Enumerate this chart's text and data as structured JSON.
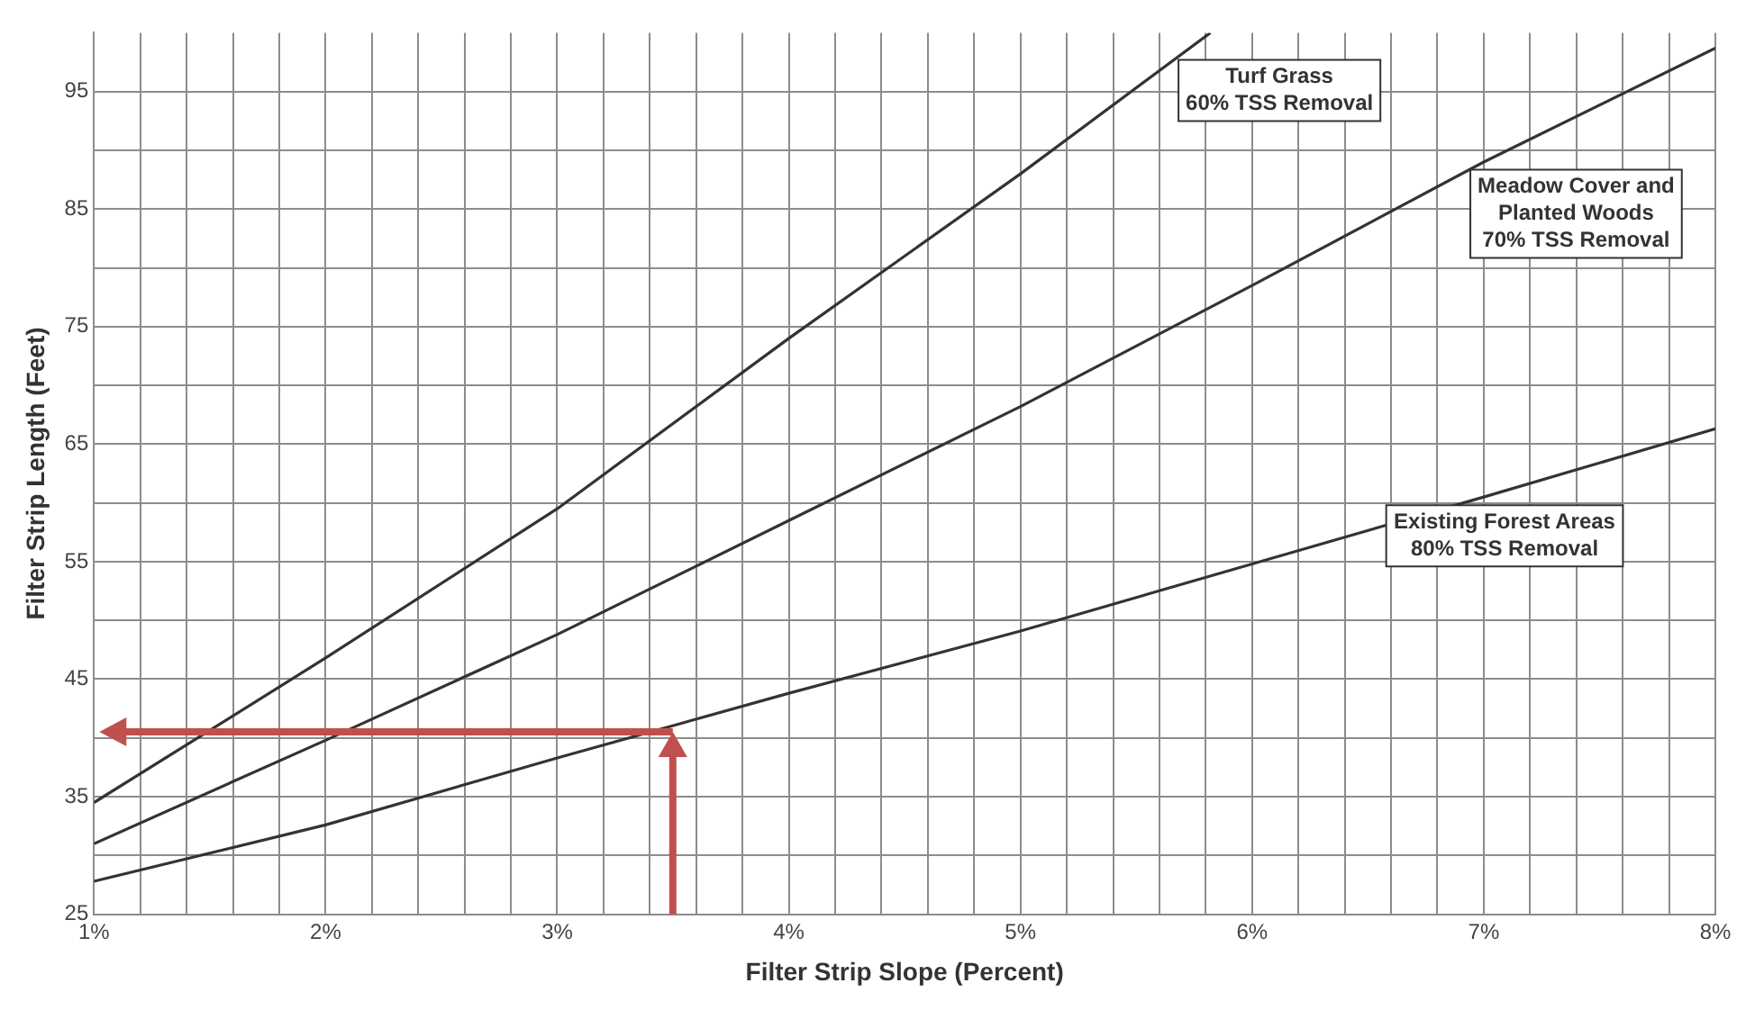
{
  "chart_data": {
    "type": "line",
    "xlabel": "Filter Strip Slope (Percent)",
    "ylabel": "Filter Strip Length (Feet)",
    "xlim": [
      1,
      8
    ],
    "ylim": [
      25,
      100
    ],
    "xticks": [
      {
        "value": 1,
        "label": "1%"
      },
      {
        "value": 1.2,
        "label": null
      },
      {
        "value": 1.4,
        "label": null
      },
      {
        "value": 1.6,
        "label": null
      },
      {
        "value": 1.8,
        "label": null
      },
      {
        "value": 2,
        "label": "2%"
      },
      {
        "value": 2.2,
        "label": null
      },
      {
        "value": 2.4,
        "label": null
      },
      {
        "value": 2.6,
        "label": null
      },
      {
        "value": 2.8,
        "label": null
      },
      {
        "value": 3,
        "label": "3%"
      },
      {
        "value": 3.2,
        "label": null
      },
      {
        "value": 3.4,
        "label": null
      },
      {
        "value": 3.6,
        "label": null
      },
      {
        "value": 3.8,
        "label": null
      },
      {
        "value": 4,
        "label": "4%"
      },
      {
        "value": 4.2,
        "label": null
      },
      {
        "value": 4.4,
        "label": null
      },
      {
        "value": 4.6,
        "label": null
      },
      {
        "value": 4.8,
        "label": null
      },
      {
        "value": 5,
        "label": "5%"
      },
      {
        "value": 5.2,
        "label": null
      },
      {
        "value": 5.4,
        "label": null
      },
      {
        "value": 5.6,
        "label": null
      },
      {
        "value": 5.8,
        "label": null
      },
      {
        "value": 6,
        "label": "6%"
      },
      {
        "value": 6.2,
        "label": null
      },
      {
        "value": 6.4,
        "label": null
      },
      {
        "value": 6.6,
        "label": null
      },
      {
        "value": 6.8,
        "label": null
      },
      {
        "value": 7,
        "label": "7%"
      },
      {
        "value": 7.2,
        "label": null
      },
      {
        "value": 7.4,
        "label": null
      },
      {
        "value": 7.6,
        "label": null
      },
      {
        "value": 7.8,
        "label": null
      },
      {
        "value": 8,
        "label": "8%"
      }
    ],
    "yticks": [
      25,
      {
        "value": 30,
        "label": null
      },
      35,
      {
        "value": 40,
        "label": null
      },
      45,
      {
        "value": 50,
        "label": null
      },
      55,
      {
        "value": 60,
        "label": null
      },
      65,
      {
        "value": 70,
        "label": null
      },
      75,
      {
        "value": 80,
        "label": null
      },
      85,
      {
        "value": 90,
        "label": null
      },
      95
    ],
    "grid": true,
    "marker": "none",
    "line_style": "solid",
    "series": [
      {
        "name": "Turf Grass\n60% TSS Removal",
        "color": "#333333",
        "x": [
          1,
          2,
          3,
          4,
          5,
          5.82
        ],
        "values": [
          34.5,
          46.8,
          59.5,
          74,
          88,
          100
        ]
      },
      {
        "name": "Meadow Cover and\nPlanted Woods\n70% TSS Removal",
        "color": "#333333",
        "x": [
          1,
          2,
          3,
          4,
          5,
          6,
          7,
          8
        ],
        "values": [
          31,
          39.8,
          48.8,
          58.5,
          68.2,
          78.5,
          89,
          98.7
        ]
      },
      {
        "name": "Existing Forest Areas\n80% TSS Removal",
        "color": "#333333",
        "x": [
          1,
          2,
          3,
          4,
          5,
          6,
          7,
          8
        ],
        "values": [
          27.8,
          32.6,
          38.3,
          43.8,
          49.1,
          54.8,
          60.5,
          66.3
        ]
      }
    ]
  }
}
